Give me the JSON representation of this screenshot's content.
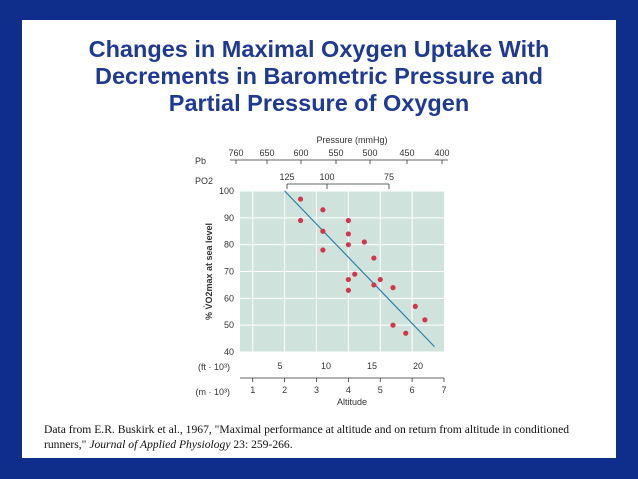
{
  "slide": {
    "title_lines": [
      "Changes in Maximal Oxygen Uptake With",
      "Decrements in Barometric Pressure and",
      "Partial Pressure of Oxygen"
    ],
    "citation": {
      "before": "Data from E.R. Buskirk et al., 1967, \"Maximal performance at altitude and on return from altitude in conditioned runners,\" ",
      "journal": "Journal of Applied Physiology",
      "after": " 23: 259-266."
    }
  },
  "colors": {
    "plot_bg": "#cfe3dc",
    "grid": "#ffffff",
    "dot": "#d0374f",
    "line": "#2d7fa8",
    "text": "#333333"
  },
  "chart_data": {
    "type": "scatter",
    "xlabel": "Altitude",
    "ylabel": "% V̇O2max at sea level",
    "y_ticks": [
      40,
      50,
      60,
      70,
      80,
      90,
      100
    ],
    "ylim": [
      40,
      100
    ],
    "x_ft_label": "(ft · 10³)",
    "x_ft_ticks": [
      5,
      10,
      15,
      20
    ],
    "x_m_label": "(m · 10³)",
    "x_m_ticks": [
      1,
      2,
      3,
      4,
      5,
      6,
      7
    ],
    "xlim_m": [
      0.6,
      7
    ],
    "pressure_title": "Pressure (mmHg)",
    "pb_label": "Pb",
    "pb_ticks": [
      "760",
      "650",
      "600",
      "550",
      "500",
      "450",
      "400"
    ],
    "po2_label": "PO2",
    "po2_ticks": [
      "125",
      "100",
      "75"
    ],
    "points": [
      {
        "x": 2.5,
        "y": 97
      },
      {
        "x": 2.5,
        "y": 89
      },
      {
        "x": 3.2,
        "y": 93
      },
      {
        "x": 3.2,
        "y": 85
      },
      {
        "x": 3.2,
        "y": 78
      },
      {
        "x": 4.0,
        "y": 89
      },
      {
        "x": 4.0,
        "y": 84
      },
      {
        "x": 4.0,
        "y": 80
      },
      {
        "x": 4.5,
        "y": 81
      },
      {
        "x": 4.8,
        "y": 75
      },
      {
        "x": 4.2,
        "y": 69
      },
      {
        "x": 4.0,
        "y": 67
      },
      {
        "x": 4.0,
        "y": 63
      },
      {
        "x": 4.8,
        "y": 65
      },
      {
        "x": 5.0,
        "y": 67
      },
      {
        "x": 5.4,
        "y": 64
      },
      {
        "x": 5.4,
        "y": 50
      },
      {
        "x": 5.8,
        "y": 47
      },
      {
        "x": 6.1,
        "y": 57
      },
      {
        "x": 6.4,
        "y": 52
      }
    ],
    "regression": {
      "x": [
        2.0,
        6.7
      ],
      "y": [
        100,
        42
      ]
    }
  }
}
